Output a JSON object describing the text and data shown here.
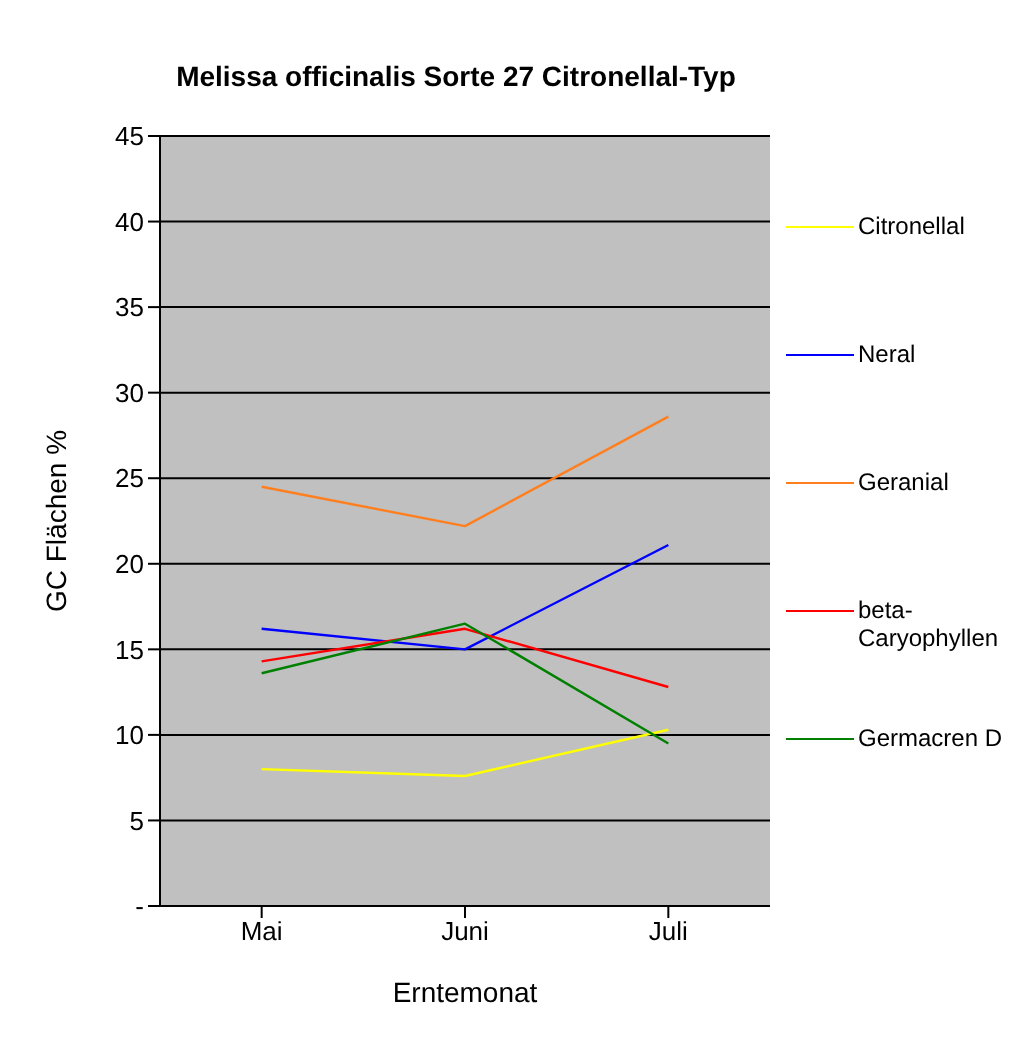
{
  "chart_data": {
    "type": "line",
    "title": "Melissa officinalis Sorte 27 Citronellal-Typ",
    "xlabel": "Erntemonat",
    "ylabel": "GC Flächen %",
    "categories": [
      "Mai",
      "Juni",
      "Juli"
    ],
    "series": [
      {
        "name": "Citronellal",
        "color": "#ffff00",
        "values": [
          8.0,
          7.6,
          10.3
        ]
      },
      {
        "name": "Neral",
        "color": "#0000ff",
        "values": [
          16.2,
          15.0,
          21.1
        ]
      },
      {
        "name": "Geranial",
        "color": "#ff7f1f",
        "values": [
          24.5,
          22.2,
          28.6
        ]
      },
      {
        "name": "beta-Caryophyllen",
        "color": "#ff0000",
        "values": [
          14.3,
          16.2,
          12.8
        ]
      },
      {
        "name": "Germacren D",
        "color": "#008000",
        "values": [
          13.6,
          16.5,
          9.5
        ]
      }
    ],
    "ylim": [
      0,
      45
    ],
    "yticks": [
      {
        "value": 0,
        "label": "-"
      },
      5,
      10,
      15,
      20,
      25,
      30,
      35,
      40,
      45
    ],
    "grid": "y",
    "legend": "right",
    "marker": "none",
    "line_style": "solid"
  }
}
